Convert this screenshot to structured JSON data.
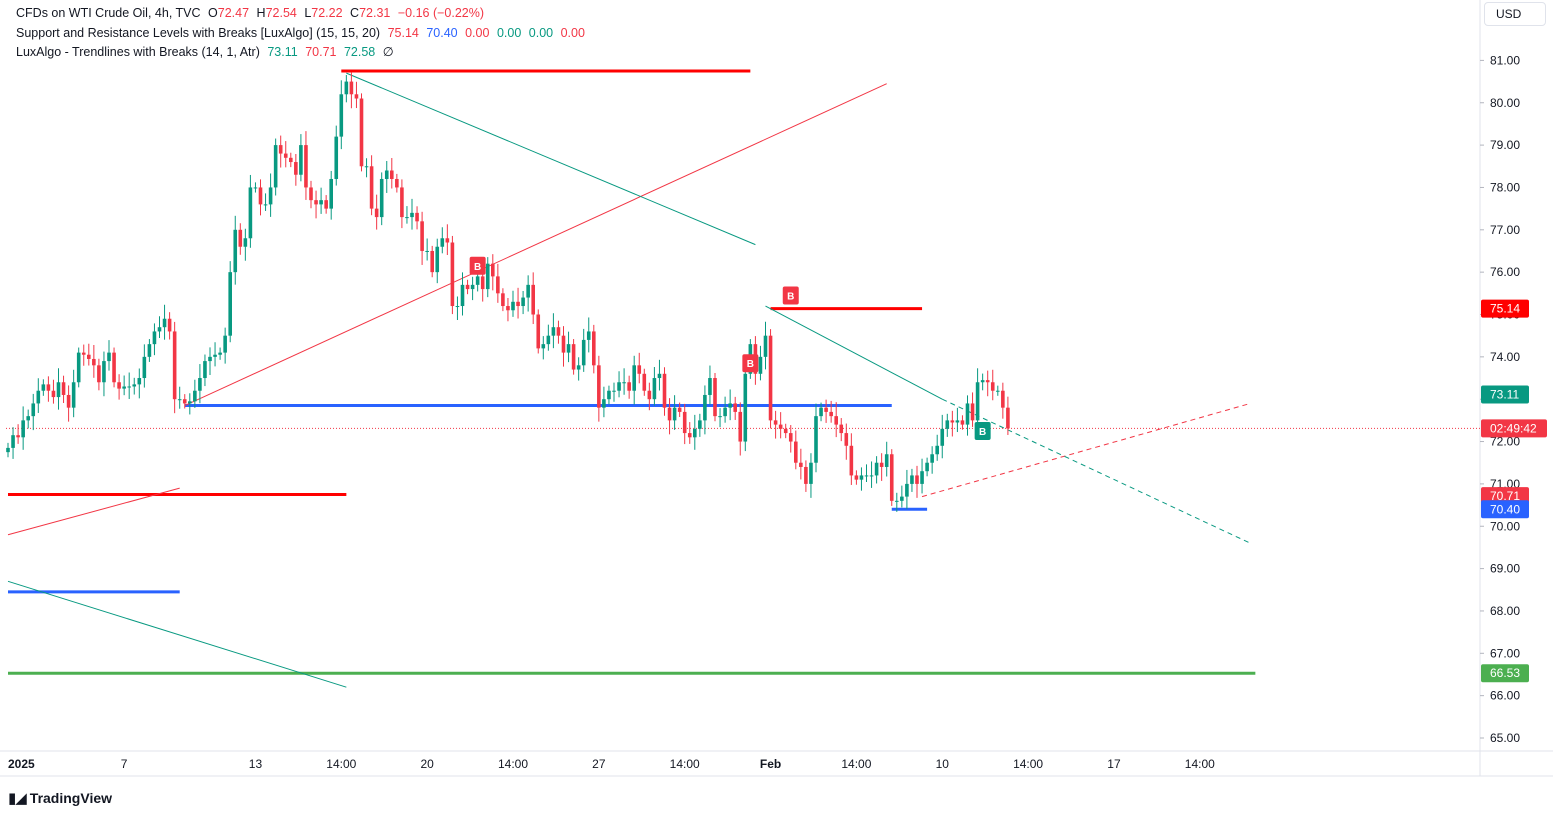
{
  "legend": {
    "line1": {
      "name": "CFDs on WTI Crude Oil, 4h, TVC",
      "o_label": "O",
      "o": "72.47",
      "h_label": "H",
      "h": "72.54",
      "l_label": "L",
      "l": "72.22",
      "c_label": "C",
      "c": "72.31",
      "change": "−0.16 (−0.22%)"
    },
    "line2": {
      "name": "Support and Resistance Levels with Breaks [LuxAlgo] (15, 15, 20)",
      "v1": "75.14",
      "v2": "70.40",
      "v3": "0.00",
      "v4": "0.00",
      "v5": "0.00",
      "v6": "0.00"
    },
    "line3": {
      "name": "LuxAlgo - Trendlines with Breaks (14, 1, Atr)",
      "v1": "73.11",
      "v2": "70.71",
      "v3": "72.58",
      "v4": "∅"
    }
  },
  "currency_button": "USD",
  "brand": "TradingView",
  "colors": {
    "up": "#089981",
    "down": "#f23645",
    "support": "#2962ff",
    "resistance": "#ff0000",
    "green_level": "#4caf50"
  },
  "chart_data": {
    "type": "candlestick",
    "symbol": "CFDs on WTI Crude Oil",
    "timeframe": "4h",
    "y_axis": {
      "range": [
        64.6,
        81.5
      ],
      "ticks": [
        "65.00",
        "66.00",
        "67.00",
        "68.00",
        "69.00",
        "70.00",
        "71.00",
        "72.00",
        "73.00",
        "74.00",
        "75.00",
        "76.00",
        "77.00",
        "78.00",
        "79.00",
        "80.00",
        "81.00"
      ]
    },
    "x_axis": {
      "ticks": [
        {
          "label": "2025",
          "bar": 0
        },
        {
          "label": "7",
          "bar": 23
        },
        {
          "label": "13",
          "bar": 49
        },
        {
          "label": "14:00",
          "bar": 66
        },
        {
          "label": "20",
          "bar": 83
        },
        {
          "label": "14:00",
          "bar": 100
        },
        {
          "label": "27",
          "bar": 117
        },
        {
          "label": "14:00",
          "bar": 134
        },
        {
          "label": "Feb",
          "bar": 151
        },
        {
          "label": "14:00",
          "bar": 168
        },
        {
          "label": "10",
          "bar": 185
        },
        {
          "label": "14:00",
          "bar": 202
        },
        {
          "label": "17",
          "bar": 219
        },
        {
          "label": "14:00",
          "bar": 236
        }
      ]
    },
    "closes": [
      71.85,
      72.15,
      72.1,
      72.5,
      72.6,
      72.9,
      73.2,
      73.35,
      73.2,
      73.05,
      73.4,
      73.1,
      72.8,
      73.4,
      74.1,
      74.05,
      73.95,
      73.8,
      73.4,
      73.9,
      74.1,
      73.4,
      73.25,
      73.3,
      73.3,
      73.35,
      73.5,
      74.0,
      74.3,
      74.6,
      74.7,
      74.9,
      74.6,
      73.0,
      73.0,
      72.9,
      72.95,
      73.2,
      73.5,
      73.9,
      74.0,
      74.05,
      74.1,
      74.5,
      76.0,
      77.0,
      76.6,
      76.8,
      78.0,
      78.0,
      77.6,
      77.6,
      78.0,
      79.0,
      78.8,
      78.7,
      78.6,
      78.3,
      79.0,
      78.0,
      77.7,
      77.6,
      77.7,
      77.5,
      78.2,
      79.2,
      80.2,
      80.5,
      80.2,
      80.1,
      78.5,
      78.5,
      77.5,
      77.3,
      78.2,
      78.4,
      78.2,
      78.0,
      77.3,
      77.3,
      77.4,
      77.2,
      76.5,
      76.5,
      76.0,
      76.6,
      76.8,
      76.7,
      75.2,
      75.2,
      75.7,
      75.6,
      75.7,
      75.9,
      75.6,
      76.2,
      75.9,
      75.5,
      75.2,
      75.1,
      75.3,
      75.2,
      75.4,
      75.7,
      75.0,
      74.2,
      74.3,
      74.5,
      74.7,
      74.5,
      74.1,
      74.3,
      73.7,
      73.8,
      74.4,
      74.6,
      73.8,
      72.8,
      73.0,
      73.2,
      73.2,
      73.4,
      73.4,
      73.2,
      73.8,
      73.6,
      73.2,
      73.0,
      73.5,
      73.6,
      72.8,
      72.5,
      72.8,
      72.7,
      72.2,
      72.1,
      72.3,
      72.5,
      73.1,
      73.5,
      72.6,
      72.6,
      72.8,
      72.9,
      72.7,
      72.0,
      73.6,
      74.3,
      73.6,
      74.0,
      74.5,
      72.5,
      72.4,
      72.3,
      72.2,
      72.0,
      71.5,
      71.4,
      71.0,
      71.5,
      72.6,
      72.8,
      72.7,
      72.6,
      72.4,
      72.2,
      71.9,
      71.2,
      71.1,
      71.2,
      71.2,
      71.2,
      71.5,
      71.4,
      71.7,
      70.6,
      70.6,
      70.7,
      71.0,
      71.2,
      71.0,
      71.3,
      71.5,
      71.7,
      71.9,
      72.3,
      72.5,
      72.45,
      72.5,
      72.4,
      72.9,
      72.5,
      73.4,
      73.45,
      73.4,
      73.2,
      73.2,
      72.8,
      72.31
    ],
    "indicators": {
      "support_resistance": [
        {
          "type": "resistance",
          "price": 80.75,
          "from_bar": 66,
          "to_bar": 147
        },
        {
          "type": "resistance",
          "price": 75.14,
          "from_bar": 151,
          "to_bar": 181
        },
        {
          "type": "resistance",
          "price": 70.75,
          "from_bar": 0,
          "to_bar": 67
        },
        {
          "type": "support",
          "price": 72.85,
          "from_bar": 35,
          "to_bar": 175
        },
        {
          "type": "support",
          "price": 70.4,
          "from_bar": 175,
          "to_bar": 182
        },
        {
          "type": "support",
          "price": 68.45,
          "from_bar": 0,
          "to_bar": 34
        },
        {
          "type": "level",
          "price": 66.53,
          "from_bar": 0,
          "to_bar": 247
        }
      ],
      "trendlines": [
        {
          "color": "down",
          "from": [
            35,
            72.85
          ],
          "to": [
            174,
            80.45
          ]
        },
        {
          "color": "down",
          "from": [
            0,
            69.8
          ],
          "to": [
            34,
            70.9
          ]
        },
        {
          "color": "down",
          "from": [
            181,
            70.7
          ],
          "to": [
            246,
            72.9
          ],
          "dashed": true
        },
        {
          "color": "up",
          "from": [
            67,
            80.7
          ],
          "to": [
            148,
            76.65
          ]
        },
        {
          "color": "up",
          "from": [
            150,
            75.2
          ],
          "to": [
            185,
            73.0
          ]
        },
        {
          "color": "up",
          "from": [
            185,
            73.0
          ],
          "to": [
            246,
            69.6
          ],
          "dashed": true
        },
        {
          "color": "up",
          "from": [
            0,
            68.7
          ],
          "to": [
            67,
            66.2
          ]
        }
      ],
      "break_labels": [
        {
          "text": "B",
          "bar": 93,
          "price": 76.15,
          "color": "down"
        },
        {
          "text": "B",
          "bar": 155,
          "price": 75.45,
          "color": "down"
        },
        {
          "text": "B",
          "bar": 147,
          "price": 73.85,
          "color": "down"
        },
        {
          "text": "B",
          "bar": 193,
          "price": 72.25,
          "color": "up"
        }
      ]
    },
    "price_labels": [
      {
        "text": "75.14",
        "price": 75.14,
        "color": "resistance"
      },
      {
        "text": "73.11",
        "price": 73.11,
        "color": "up"
      },
      {
        "text": "02:49:42",
        "price": 72.31,
        "color": "down"
      },
      {
        "text": "70.71",
        "price": 70.71,
        "color": "down"
      },
      {
        "text": "70.40",
        "price": 70.4,
        "color": "support"
      },
      {
        "text": "66.53",
        "price": 66.53,
        "color": "green_level"
      }
    ],
    "current_price": 72.31
  }
}
